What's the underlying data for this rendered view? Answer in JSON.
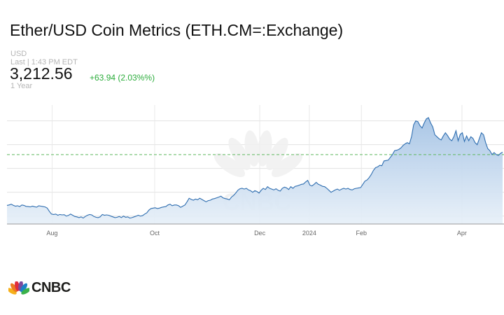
{
  "header": {
    "title": "Ether/USD Coin Metrics (ETH.CM=:Exchange)",
    "currency": "USD",
    "last_update": "Last | 1:43 PM EDT",
    "price": "3,212.56",
    "change": "+63.94 (2.03%%)",
    "range": "1 Year"
  },
  "brand": {
    "name": "CNBC"
  },
  "colors": {
    "line": "#2f6eb0",
    "fill_top": "#a9c6e6",
    "prev_close": "#5cb85c"
  },
  "chart_data": {
    "type": "area",
    "x_tick_labels": [
      "Aug",
      "Oct",
      "Dec",
      "2024",
      "Feb",
      "Apr"
    ],
    "x_tick_positions": [
      0.091,
      0.298,
      0.51,
      0.61,
      0.715,
      0.918
    ],
    "ylim": [
      1400,
      4400
    ],
    "grid": true,
    "prev_close": 3148.62,
    "series": [
      {
        "values": [
          1870,
          1880,
          1900,
          1870,
          1850,
          1860,
          1840,
          1880,
          1870,
          1845,
          1840,
          1830,
          1850,
          1835,
          1825,
          1860,
          1850,
          1840,
          1830,
          1800,
          1720,
          1650,
          1640,
          1650,
          1620,
          1640,
          1630,
          1635,
          1600,
          1615,
          1650,
          1620,
          1590,
          1580,
          1560,
          1580,
          1550,
          1590,
          1620,
          1640,
          1630,
          1590,
          1570,
          1560,
          1580,
          1640,
          1620,
          1630,
          1620,
          1600,
          1580,
          1560,
          1570,
          1590,
          1560,
          1600,
          1570,
          1580,
          1550,
          1560,
          1580,
          1600,
          1620,
          1600,
          1610,
          1650,
          1680,
          1750,
          1790,
          1800,
          1810,
          1790,
          1800,
          1820,
          1830,
          1840,
          1880,
          1900,
          1860,
          1880,
          1880,
          1860,
          1820,
          1850,
          1880,
          1960,
          2050,
          2020,
          2000,
          2030,
          2010,
          2050,
          2020,
          1990,
          1960,
          1990,
          2000,
          2030,
          2040,
          2060,
          2080,
          2100,
          2060,
          2040,
          2030,
          2010,
          2080,
          2120,
          2180,
          2250,
          2290,
          2300,
          2280,
          2300,
          2260,
          2240,
          2200,
          2240,
          2220,
          2180,
          2250,
          2300,
          2270,
          2340,
          2300,
          2280,
          2260,
          2290,
          2250,
          2230,
          2300,
          2330,
          2310,
          2270,
          2340,
          2300,
          2350,
          2360,
          2380,
          2400,
          2410,
          2460,
          2500,
          2380,
          2360,
          2400,
          2450,
          2400,
          2380,
          2350,
          2340,
          2300,
          2250,
          2200,
          2230,
          2260,
          2280,
          2250,
          2280,
          2300,
          2280,
          2300,
          2270,
          2260,
          2290,
          2300,
          2310,
          2320,
          2400,
          2480,
          2510,
          2570,
          2650,
          2750,
          2820,
          2840,
          2880,
          2870,
          2990,
          3000,
          3010,
          3080,
          3150,
          3250,
          3260,
          3280,
          3320,
          3380,
          3420,
          3450,
          3420,
          3600,
          3900,
          4000,
          3980,
          3880,
          3820,
          3950,
          4050,
          4080,
          3950,
          3850,
          3650,
          3600,
          3550,
          3520,
          3620,
          3700,
          3630,
          3540,
          3500,
          3600,
          3750,
          3500,
          3660,
          3700,
          3480,
          3620,
          3500,
          3600,
          3560,
          3450,
          3400,
          3550,
          3700,
          3650,
          3450,
          3300,
          3250,
          3150,
          3200,
          3150,
          3130,
          3180,
          3212.56
        ]
      }
    ]
  }
}
